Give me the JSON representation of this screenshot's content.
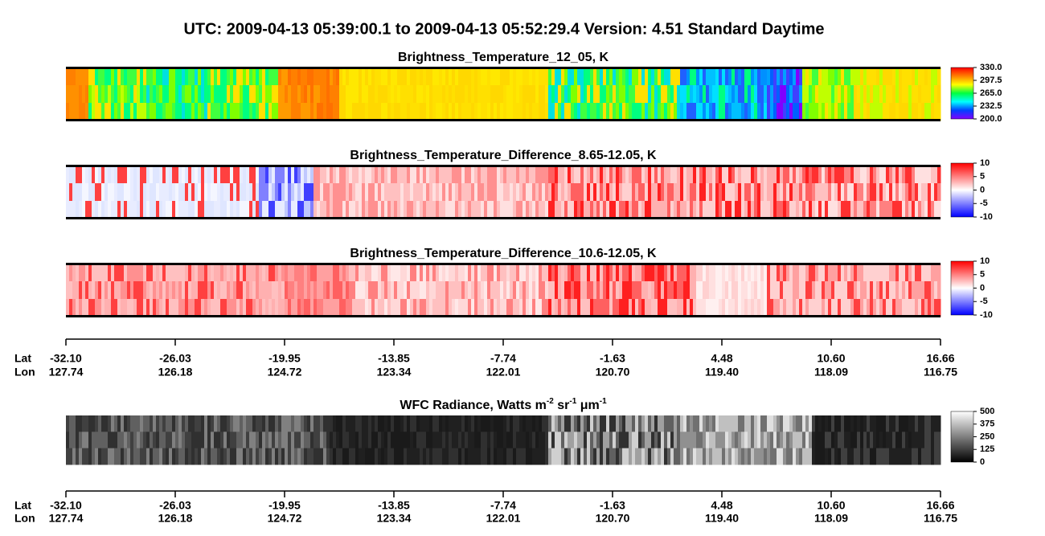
{
  "title": "UTC:  2009-04-13   05:39:00.1  to  2009-04-13   05:52:29.4    Version: 4.51  Standard Daytime",
  "panels": [
    {
      "title": [
        "Brightness_Temperature_12_05, K"
      ],
      "colorbar": {
        "lim": [
          200,
          330
        ],
        "colors": [
          "#8000ff",
          "#0040ff",
          "#00ffff",
          "#00ff40",
          "#ffff00",
          "#ff8000",
          "#ff0000"
        ],
        "ticks": [
          {
            "value": 330,
            "label": "330.0"
          },
          297.5,
          {
            "value": 265,
            "label": "265.0"
          },
          232.5,
          {
            "value": 200,
            "label": "200.0"
          }
        ]
      }
    },
    {
      "title": [
        "Brightness_Temperature_Difference_8.65-12.05, K"
      ],
      "colorbar": {
        "lim": [
          -10,
          10
        ],
        "colors": [
          "#0000ff",
          "#ffffff",
          "#ff0000"
        ],
        "ticks": [
          10,
          5,
          0,
          -5,
          -10
        ]
      }
    },
    {
      "title": [
        "Brightness_Temperature_Difference_10.6-12.05, K"
      ],
      "colorbar": {
        "lim": [
          -10,
          10
        ],
        "colors": [
          "#0000ff",
          "#ffffff",
          "#ff0000"
        ],
        "ticks": [
          10,
          5,
          0,
          -5,
          -10
        ]
      }
    },
    {
      "title": [
        "WFC Radiance, Watts m",
        "-2",
        " sr",
        "-1",
        " μm",
        "-1"
      ],
      "colorbar": {
        "lim": [
          0,
          500
        ],
        "colors": [
          "#000000",
          "#ffffff"
        ],
        "ticks": [
          500,
          375,
          250,
          125,
          0
        ]
      }
    }
  ],
  "axis": {
    "lat_label": "Lat",
    "lon_label": "Lon",
    "lat": [
      {
        "value": -32.1,
        "label": "-32.10"
      },
      -26.03,
      -19.95,
      -13.85,
      -7.74,
      -1.63,
      4.48,
      {
        "value": 10.6,
        "label": "10.60"
      },
      16.66
    ],
    "lon": [
      127.74,
      126.18,
      124.72,
      123.34,
      122.01,
      {
        "value": 120.7,
        "label": "120.70"
      },
      {
        "value": 119.4,
        "label": "119.40"
      },
      118.09,
      116.75
    ]
  }
}
